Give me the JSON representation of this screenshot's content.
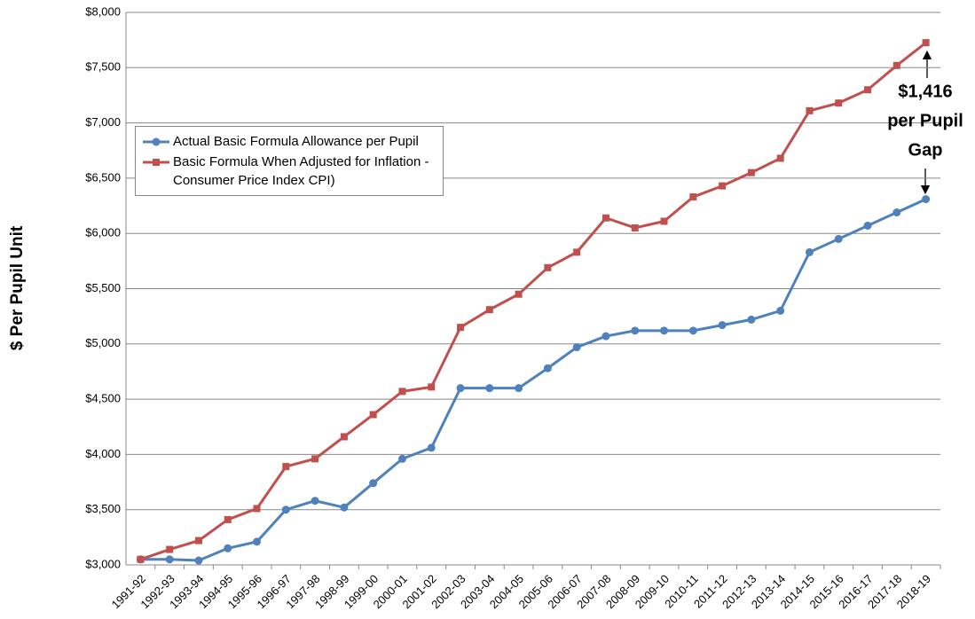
{
  "chart_data": {
    "type": "line",
    "y_label": "$ Per Pupil Unit",
    "annotation": [
      "$1,416",
      "per Pupil",
      "Gap"
    ],
    "categories": [
      "1991-92",
      "1992-93",
      "1993-94",
      "1994-95",
      "1995-96",
      "1996-97",
      "1997-98",
      "1998-99",
      "1999-00",
      "2000-01",
      "2001-02",
      "2002-03",
      "2003-04",
      "2004-05",
      "2005-06",
      "2006-07",
      "2007-08",
      "2008-09",
      "2009-10",
      "2010-11",
      "2011-12",
      "2012-13",
      "2013-14",
      "2014-15",
      "2015-16",
      "2016-17",
      "2017-18",
      "2018-19"
    ],
    "series": [
      {
        "name": "Actual Basic Formula Allowance per Pupil",
        "color": "#4f81bd",
        "marker": "circle",
        "values": [
          3050,
          3050,
          3040,
          3150,
          3210,
          3500,
          3580,
          3520,
          3740,
          3960,
          4060,
          4600,
          4600,
          4600,
          4780,
          4970,
          5070,
          5120,
          5120,
          5120,
          5170,
          5220,
          5300,
          5830,
          5950,
          6070,
          6190,
          6310
        ]
      },
      {
        "name": "Basic Formula When Adjusted for Inflation - Consumer Price Index CPI)",
        "color": "#c0504d",
        "marker": "square",
        "values": [
          3050,
          3140,
          3220,
          3410,
          3510,
          3890,
          3960,
          4160,
          4360,
          4570,
          4610,
          5150,
          5310,
          5450,
          5690,
          5830,
          6140,
          6050,
          6110,
          6330,
          6430,
          6550,
          6680,
          7110,
          7180,
          7300,
          7520,
          7726
        ]
      }
    ],
    "ylim": [
      3000,
      8000
    ],
    "yticks": [
      {
        "value": 3000,
        "label": "$3,000"
      },
      {
        "value": 3500,
        "label": "$3,500"
      },
      {
        "value": 4000,
        "label": "$4,000"
      },
      {
        "value": 4500,
        "label": "$4,500"
      },
      {
        "value": 5000,
        "label": "$5,000"
      },
      {
        "value": 5500,
        "label": "$5,500"
      },
      {
        "value": 6000,
        "label": "$6,000"
      },
      {
        "value": 6500,
        "label": "$6,500"
      },
      {
        "value": 7000,
        "label": "$7,000"
      },
      {
        "value": 7500,
        "label": "$7,500"
      },
      {
        "value": 8000,
        "label": "$8,000"
      }
    ],
    "grid": true
  }
}
